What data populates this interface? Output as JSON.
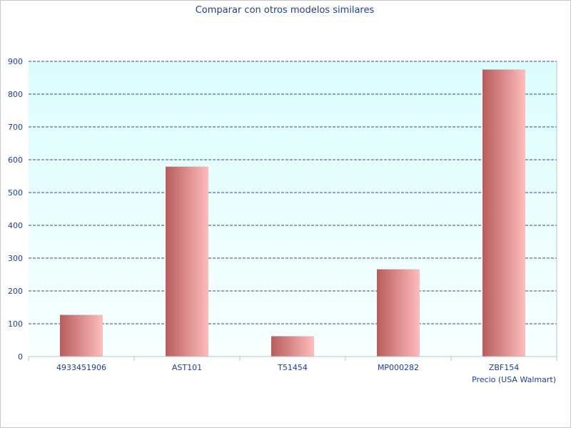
{
  "chart_data": {
    "type": "bar",
    "title": "Comparar con otros modelos similares",
    "xlabel": "Precio (USA Walmart)",
    "ylabel": "",
    "categories": [
      "4933451906",
      "AST101",
      "T51454",
      "MP000282",
      "ZBF154"
    ],
    "values": [
      127,
      579,
      62,
      266,
      875
    ],
    "ylim": [
      0,
      900
    ],
    "yticks": [
      "0",
      "100",
      "200",
      "300",
      "400",
      "500",
      "600",
      "700",
      "800",
      "900"
    ],
    "grid": true,
    "legend": "none"
  },
  "colors": {
    "text": "#1a3ea8",
    "plot_bg_top": "#dcfdfd",
    "plot_bg_bottom": "#f8ffff",
    "grid": "#2b4d94",
    "bar_dark": "#b85c5c",
    "bar_light": "#ffbcbc",
    "axis": "#b7c7d3"
  }
}
